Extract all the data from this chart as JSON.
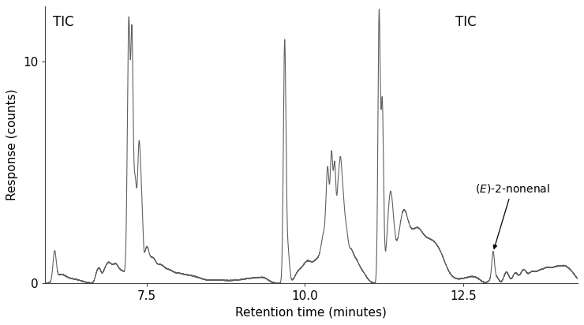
{
  "xlabel": "Retention time (minutes)",
  "ylabel": "Response (counts)",
  "tic_label_left": "TIC",
  "tic_label_right": "TIC",
  "annotation_text": "(E)-2-nonenal",
  "xlim": [
    5.9,
    14.3
  ],
  "ylim": [
    0,
    12.5
  ],
  "yticks": [
    0,
    10
  ],
  "xticks": [
    7.5,
    10.0,
    12.5
  ],
  "line_color": "#606060",
  "bg_color": "#ffffff",
  "linewidth": 0.8,
  "fontsize_labels": 11,
  "fontsize_ticks": 11
}
